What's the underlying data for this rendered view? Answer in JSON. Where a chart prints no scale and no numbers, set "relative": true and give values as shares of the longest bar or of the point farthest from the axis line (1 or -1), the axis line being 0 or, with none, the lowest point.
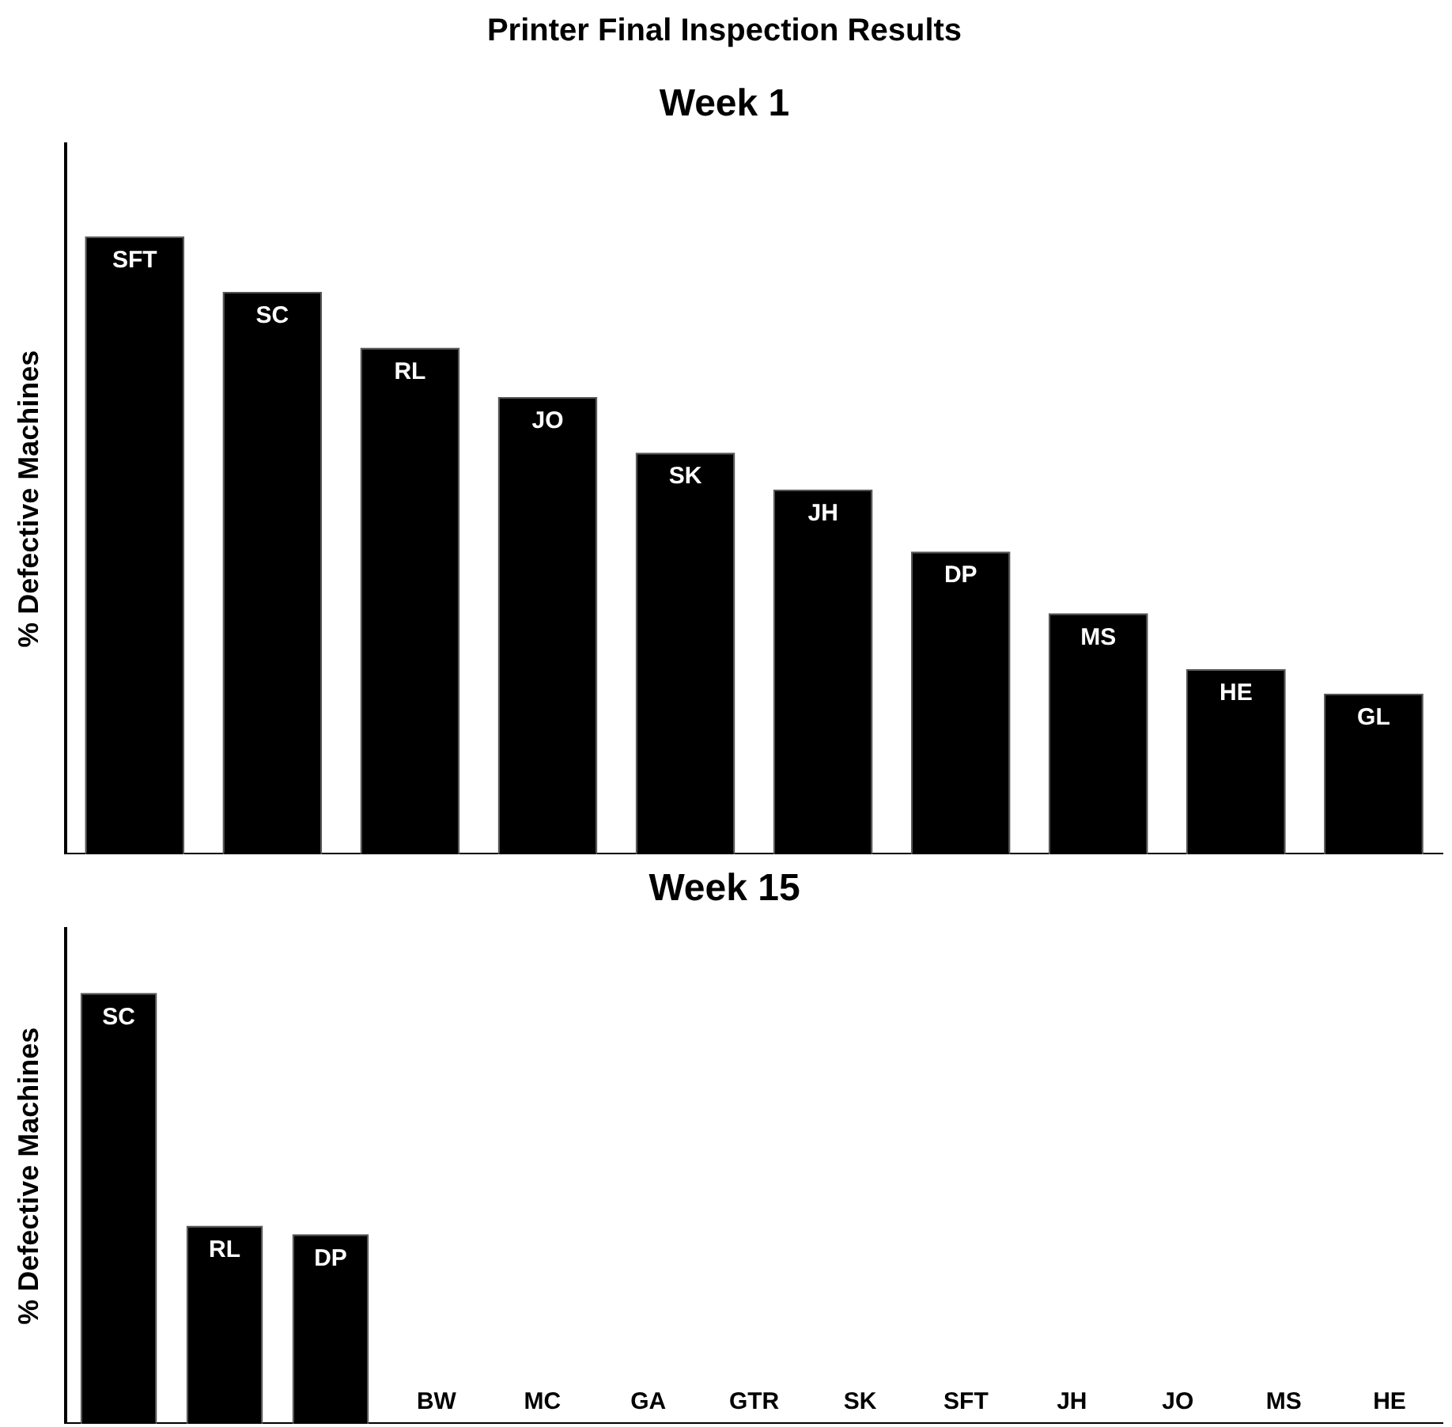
{
  "chart_data": [
    {
      "type": "bar",
      "title": "Printer Final Inspection Results",
      "subtitle": "Week 1",
      "ylabel": "% Defective Machines",
      "relative": true,
      "categories": [
        "SFT",
        "SC",
        "RL",
        "JO",
        "SK",
        "JH",
        "DP",
        "MS",
        "HE",
        "GL"
      ],
      "values": [
        1,
        0.91,
        0.82,
        0.74,
        0.65,
        0.59,
        0.49,
        0.39,
        0.3,
        0.26
      ],
      "color": "#000000",
      "grid": false,
      "legend": false
    },
    {
      "type": "bar",
      "title": "Week 15",
      "ylabel": "% Defective Machines",
      "relative": true,
      "categories": [
        "SC",
        "RL",
        "DP",
        "BW",
        "MC",
        "GA",
        "GTR",
        "SK",
        "SFT",
        "JH",
        "JO",
        "MS",
        "HE"
      ],
      "values": [
        1,
        0.46,
        0.44,
        0,
        0,
        0,
        0,
        0,
        0,
        0,
        0,
        0,
        0
      ],
      "color": "#000000",
      "grid": false,
      "legend": false
    }
  ]
}
